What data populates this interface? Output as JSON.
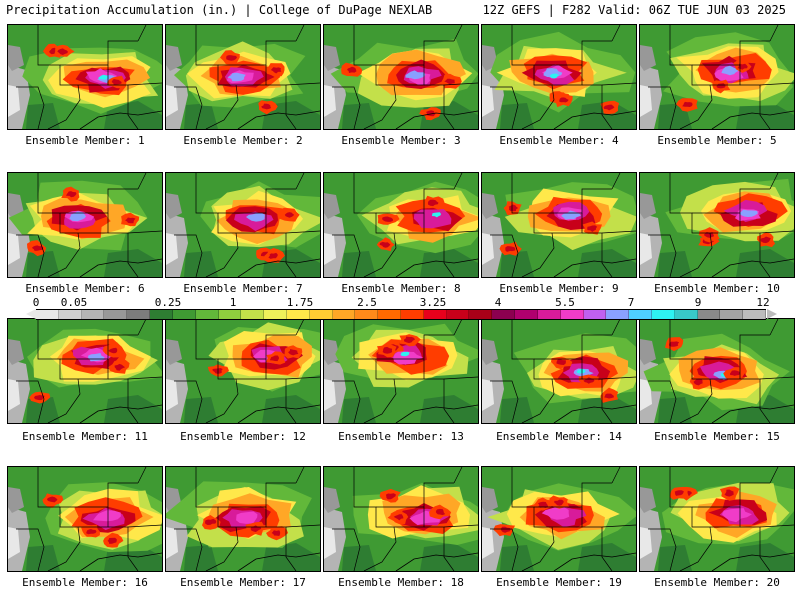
{
  "header": {
    "left_title": "Precipitation Accumulation (in.) | College of DuPage NEXLAB",
    "right_title": "12Z GEFS | F282 Valid: 06Z TUE JUN 03 2025"
  },
  "panels": [
    {
      "label": "Ensemble Member: 1"
    },
    {
      "label": "Ensemble Member: 2"
    },
    {
      "label": "Ensemble Member: 3"
    },
    {
      "label": "Ensemble Member: 4"
    },
    {
      "label": "Ensemble Member: 5"
    },
    {
      "label": "Ensemble Member: 6"
    },
    {
      "label": "Ensemble Member: 7"
    },
    {
      "label": "Ensemble Member: 8"
    },
    {
      "label": "Ensemble Member: 9"
    },
    {
      "label": "Ensemble Member: 10"
    },
    {
      "label": "Ensemble Member: 11"
    },
    {
      "label": "Ensemble Member: 12"
    },
    {
      "label": "Ensemble Member: 13"
    },
    {
      "label": "Ensemble Member: 14"
    },
    {
      "label": "Ensemble Member: 15"
    },
    {
      "label": "Ensemble Member: 16"
    },
    {
      "label": "Ensemble Member: 17"
    },
    {
      "label": "Ensemble Member: 18"
    },
    {
      "label": "Ensemble Member: 19"
    },
    {
      "label": "Ensemble Member: 20"
    }
  ],
  "colorbar": {
    "tick_labels": [
      "0",
      "0.05",
      "0.25",
      "1",
      "1.75",
      "2.5",
      "3.25",
      "4",
      "5.5",
      "7",
      "9",
      "12"
    ],
    "colors": [
      "#e8e8e8",
      "#d0d0d0",
      "#b4b4b4",
      "#989898",
      "#7c7c7c",
      "#2e7d32",
      "#3f9a33",
      "#62b83a",
      "#8fce3e",
      "#c3e04a",
      "#eef05a",
      "#ffe84a",
      "#ffcc33",
      "#ffa726",
      "#ff8a1a",
      "#ff6a00",
      "#ff3d00",
      "#e8001c",
      "#c8001a",
      "#a80018",
      "#8c0050",
      "#b0006e",
      "#d81b9a",
      "#f03cc8",
      "#c060f0",
      "#8aa0ff",
      "#4fd0ff",
      "#2ef2f2",
      "#38c8c8",
      "#8a8a8a",
      "#a4a4a4",
      "#bcbcbc"
    ]
  }
}
